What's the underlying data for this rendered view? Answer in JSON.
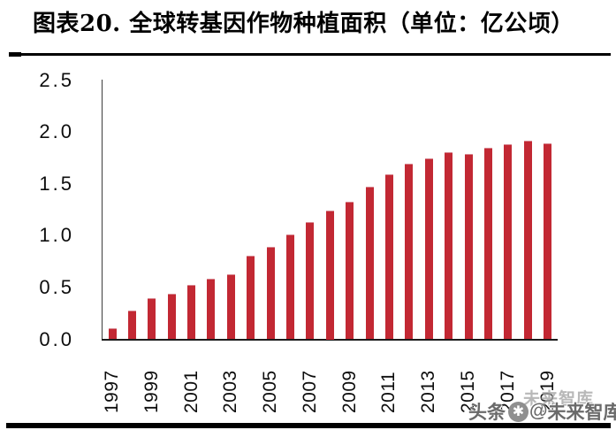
{
  "header": {
    "title": "图表20.  全球转基因作物种植面积（单位：亿公顷）"
  },
  "chart_data": {
    "type": "bar",
    "title": "全球转基因作物种植面积",
    "unit_label": "亿公顷",
    "categories": [
      "1997",
      "1998",
      "1999",
      "2000",
      "2001",
      "2002",
      "2003",
      "2004",
      "2005",
      "2006",
      "2007",
      "2008",
      "2009",
      "2010",
      "2011",
      "2012",
      "2013",
      "2014",
      "2015",
      "2016",
      "2017",
      "2018",
      "2019"
    ],
    "values": [
      0.11,
      0.28,
      0.4,
      0.44,
      0.53,
      0.59,
      0.63,
      0.81,
      0.9,
      1.02,
      1.14,
      1.25,
      1.33,
      1.48,
      1.6,
      1.7,
      1.75,
      1.81,
      1.79,
      1.85,
      1.89,
      1.92,
      1.9
    ],
    "x_tick_labels": [
      "1997",
      "1999",
      "2001",
      "2003",
      "2005",
      "2007",
      "2009",
      "2011",
      "2013",
      "2015",
      "2017",
      "2019"
    ],
    "y_tick_labels": [
      "0.0",
      "0.5",
      "1.0",
      "1.5",
      "2.0",
      "2.5"
    ],
    "ylim": [
      0,
      2.5
    ],
    "xlabel": "",
    "ylabel": "",
    "grid": false,
    "legend": false,
    "bar_color": "#c22833"
  },
  "watermark": {
    "prefix": "头条",
    "at": "@",
    "name": "未来智库",
    "ghost": "未来智库",
    "logo": "toutiao-star-badge"
  },
  "colors": {
    "bar": "#c22833",
    "y_axis_line": "#3d3d3d",
    "x_axis_line": "#1c1c1c",
    "title_text": "#000000",
    "tick_text": "#0d0d0d",
    "divider": "#000000",
    "bottom_rule": "#000000",
    "watermark_main": "#6a6a6a",
    "watermark_ghost": "#a7a7a7"
  }
}
